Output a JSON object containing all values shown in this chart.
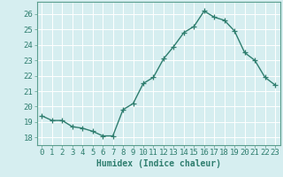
{
  "x": [
    0,
    1,
    2,
    3,
    4,
    5,
    6,
    7,
    8,
    9,
    10,
    11,
    12,
    13,
    14,
    15,
    16,
    17,
    18,
    19,
    20,
    21,
    22,
    23
  ],
  "y": [
    19.4,
    19.1,
    19.1,
    18.7,
    18.6,
    18.4,
    18.1,
    18.1,
    19.8,
    20.2,
    21.5,
    21.9,
    23.1,
    23.9,
    24.8,
    25.2,
    26.2,
    25.8,
    25.6,
    24.9,
    23.5,
    23.0,
    21.9,
    21.4
  ],
  "line_color": "#2e7d6e",
  "marker": "+",
  "marker_size": 4,
  "linewidth": 1.0,
  "bg_color": "#d6eef0",
  "grid_color": "#ffffff",
  "xlabel": "Humidex (Indice chaleur)",
  "ylabel": "",
  "xlim": [
    -0.5,
    23.5
  ],
  "ylim": [
    17.5,
    26.8
  ],
  "yticks": [
    18,
    19,
    20,
    21,
    22,
    23,
    24,
    25,
    26
  ],
  "xticks": [
    0,
    1,
    2,
    3,
    4,
    5,
    6,
    7,
    8,
    9,
    10,
    11,
    12,
    13,
    14,
    15,
    16,
    17,
    18,
    19,
    20,
    21,
    22,
    23
  ],
  "tick_color": "#2e7d6e",
  "xlabel_fontsize": 7,
  "tick_fontsize": 6.5,
  "spine_color": "#5a9e8e"
}
